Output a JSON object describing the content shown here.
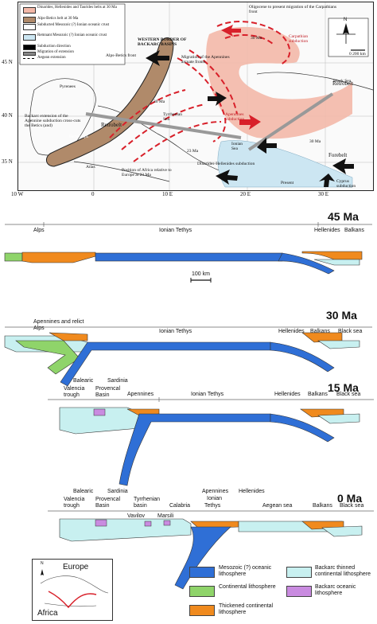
{
  "map": {
    "legend": [
      {
        "label": "Dinarides, Hellenides and Taurides belts at 30 Ma",
        "color": "#f3b8a8"
      },
      {
        "label": "Alps-Betics belt at 30 Ma",
        "color": "#b08a6a"
      },
      {
        "label": "Subducted Mesozoic (?) Ionian oceanic crust",
        "color": "#ffffff"
      },
      {
        "label": "Remnant Mesozoic (?) Ionian oceanic crust",
        "color": "#cce6f2"
      },
      {
        "label": "Subduction direction",
        "color": "#000000"
      },
      {
        "label": "Migration of extension",
        "color": "#888888"
      },
      {
        "label": "Aegean extension",
        "color": "#000000"
      }
    ],
    "texts": {
      "western_border": "WESTERN BORDER OF BACKARC BASINS",
      "oligocene": "Oligocene to present migration of the Carpathians front",
      "carpathian": "Carpathian subduction",
      "migration_apennines": "Migration of the Apennines arcuate fronts",
      "alps_betics_front": "Alps-Betics front",
      "pyrenees": "Pyrenees",
      "backarc_extension": "Backarc extension of the Apennine subduction cross-cuts the Betics (and)",
      "betic_alps": "Betic-Alps",
      "retrobelt_w": "Retrobelt",
      "retrobelt_e": "Retrobelt",
      "tyrrhenian": "Tyrrhenian Sea",
      "apennines_subduction": "Apennines subduction",
      "dinarides_subduction": "Dinarides-Hellenides subduction",
      "position_africa": "Position of Africa relative to Europe at 23 Ma",
      "atlas": "Atlas",
      "ionian": "Ionian Sea",
      "cyprus": "Cyprus subduction",
      "forebelt": "Forebelt",
      "black_sea": "Black Sea",
      "present": "Present",
      "ma30": "30 Ma",
      "ma30b": "30 Ma",
      "ma30c": "30 Ma",
      "ma23": "23 Ma",
      "scale": "0    200 km",
      "north": "N"
    },
    "lat_labels": [
      "45 N",
      "40 N",
      "35 N"
    ],
    "lon_labels": [
      "10 W",
      "0",
      "10 E",
      "20 E",
      "30 E"
    ]
  },
  "sections": [
    {
      "title": "45 Ma",
      "labels": [
        "Alps",
        "Ionian Tethys",
        "Hellenides",
        "Balkans"
      ]
    },
    {
      "title": "30 Ma",
      "labels": [
        "Apennines and relict Alps",
        "Ionian Tethys",
        "Hellenides",
        "Balkans",
        "Black sea"
      ]
    },
    {
      "title": "15 Ma",
      "labels": [
        "Balearic",
        "Sardinia",
        "Valencia trough",
        "Provencal Basin",
        "Apennines",
        "Ionian Tethys",
        "Hellenides",
        "Balkans",
        "Black sea"
      ]
    },
    {
      "title": "0 Ma",
      "labels": [
        "Balearic",
        "Sardinia",
        "Apennines",
        "Ionian",
        "Hellenides",
        "Valencia trough",
        "Provencal Basin",
        "Tyrrhenian basin",
        "Calabria",
        "Tethys",
        "Aegean sea",
        "Balkans",
        "Black sea",
        "Vavilov",
        "Marsili"
      ]
    }
  ],
  "scale_bar": "100 km",
  "inset": {
    "europe": "Europe",
    "africa": "Africa",
    "north": "N"
  },
  "legend": [
    {
      "label": "Mesozoic (?) oceanic lithosphere",
      "color": "#2f6fd6"
    },
    {
      "label": "Backarc thinned continental lithosphere",
      "color": "#c8f0f0"
    },
    {
      "label": "Continental lithosphere",
      "color": "#8fd46a"
    },
    {
      "label": "Backarc oceanic lithosphere",
      "color": "#c98be0"
    },
    {
      "label": "Thickened continental lithosphere",
      "color": "#f08a1e"
    }
  ]
}
